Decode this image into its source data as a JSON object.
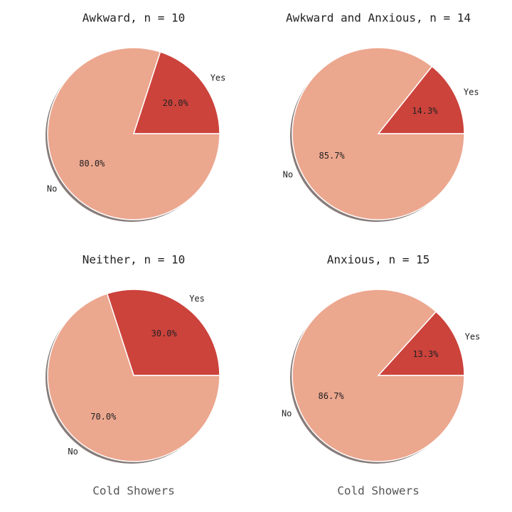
{
  "colors": {
    "yes": "#cc433c",
    "no": "#eca78f",
    "shadow": "#7a6e6c",
    "edge": "#ffffff"
  },
  "chart_data": [
    {
      "type": "pie",
      "title": "Awkward, n = 10",
      "xlabel": "",
      "categories": [
        "Yes",
        "No"
      ],
      "values": [
        20.0,
        80.0
      ],
      "value_labels": [
        "20.0%",
        "80.0%"
      ]
    },
    {
      "type": "pie",
      "title": "Awkward and Anxious, n = 14",
      "xlabel": "",
      "categories": [
        "Yes",
        "No"
      ],
      "values": [
        14.3,
        85.7
      ],
      "value_labels": [
        "14.3%",
        "85.7%"
      ]
    },
    {
      "type": "pie",
      "title": "Neither, n = 10",
      "xlabel": "Cold Showers",
      "categories": [
        "Yes",
        "No"
      ],
      "values": [
        30.0,
        70.0
      ],
      "value_labels": [
        "30.0%",
        "70.0%"
      ]
    },
    {
      "type": "pie",
      "title": "Anxious, n = 15",
      "xlabel": "Cold Showers",
      "categories": [
        "Yes",
        "No"
      ],
      "values": [
        13.3,
        86.7
      ],
      "value_labels": [
        "13.3%",
        "86.7%"
      ]
    }
  ]
}
